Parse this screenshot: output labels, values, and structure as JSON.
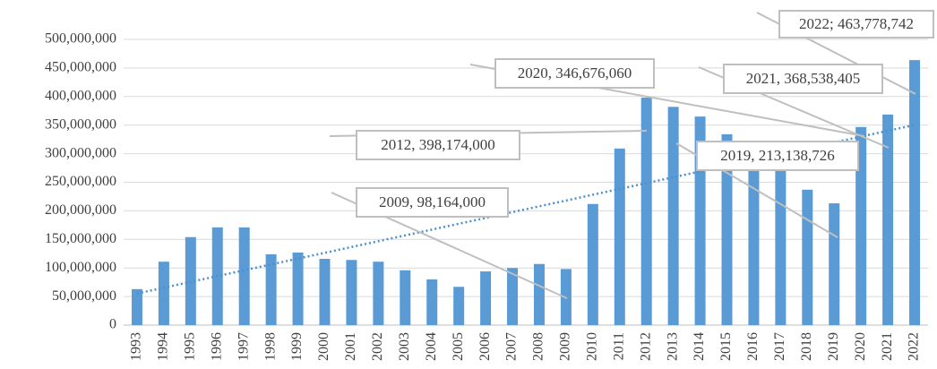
{
  "chart_data": {
    "type": "bar",
    "categories": [
      "1993",
      "1994",
      "1995",
      "1996",
      "1997",
      "1998",
      "1999",
      "2000",
      "2001",
      "2002",
      "2003",
      "2004",
      "2005",
      "2006",
      "2007",
      "2008",
      "2009",
      "2010",
      "2011",
      "2012",
      "2013",
      "2014",
      "2015",
      "2016",
      "2017",
      "2018",
      "2019",
      "2020",
      "2021",
      "2022"
    ],
    "values": [
      63000000,
      111000000,
      154000000,
      171000000,
      171000000,
      124000000,
      127000000,
      116000000,
      114000000,
      111000000,
      96000000,
      80000000,
      67000000,
      94000000,
      100000000,
      107000000,
      98164000,
      212000000,
      309000000,
      398174000,
      382000000,
      365000000,
      334000000,
      275000000,
      275000000,
      237000000,
      213138726,
      346676060,
      368538405,
      463778742
    ],
    "color": "#5b9bd5",
    "trendline": true,
    "trendline_color": "#4a90d0",
    "ylim": [
      0,
      500000000
    ],
    "yticks": [
      0,
      {
        "value": 50000000,
        "label": "50,000,000"
      },
      {
        "value": 100000000,
        "label": "100,000,000"
      },
      {
        "value": 150000000,
        "label": "150,000,000"
      },
      {
        "value": 200000000,
        "label": "200,000,000"
      },
      {
        "value": 250000000,
        "label": "250,000,000"
      },
      {
        "value": 300000000,
        "label": "300,000,000"
      },
      {
        "value": 350000000,
        "label": "350,000,000"
      },
      {
        "value": 400000000,
        "label": "400,000,000"
      },
      {
        "value": 450000000,
        "label": "450,000,000"
      },
      {
        "value": 500000000,
        "label": "500,000,000"
      }
    ],
    "grid": true,
    "annotations": [
      {
        "text": "2022; 463,778,742"
      },
      {
        "text": "2020, 346,676,060"
      },
      {
        "text": "2021, 368,538,405"
      },
      {
        "text": "2012, 398,174,000"
      },
      {
        "text": "2019, 213,138,726"
      },
      {
        "text": "2009, 98,164,000"
      }
    ]
  }
}
